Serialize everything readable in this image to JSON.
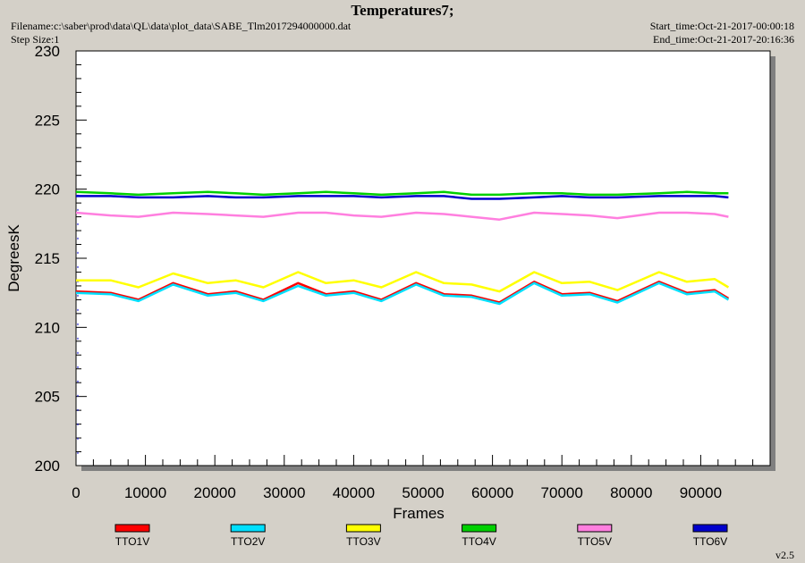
{
  "header": {
    "title": "Temperatures7;",
    "filename": "Filename:c:\\saber\\prod\\data\\QL\\data\\plot_data\\SABE_Tlm2017294000000.dat",
    "step_size": "Step Size:1",
    "start_time": "Start_time:Oct-21-2017-00:00:18",
    "end_time": "End_time:Oct-21-2017-20:16:36",
    "version": "v2.5"
  },
  "chart_data": {
    "type": "line",
    "title": "Temperatures7;",
    "xlabel": "Frames",
    "ylabel": "DegreesK",
    "xlim": [
      0,
      100000
    ],
    "ylim": [
      200,
      230
    ],
    "xticks": [
      0,
      10000,
      20000,
      30000,
      40000,
      50000,
      60000,
      70000,
      80000,
      90000
    ],
    "yticks": [
      200,
      205,
      210,
      215,
      220,
      225,
      230
    ],
    "grid": false,
    "legend_position": "bottom",
    "x": [
      0,
      5000,
      9000,
      14000,
      19000,
      23000,
      27000,
      32000,
      36000,
      40000,
      44000,
      49000,
      53000,
      57000,
      61000,
      66000,
      70000,
      74000,
      78000,
      84000,
      88000,
      92000,
      94000
    ],
    "series": [
      {
        "name": "TTO1V",
        "color": "#ff0000",
        "values": [
          212.6,
          212.5,
          212.0,
          213.2,
          212.4,
          212.6,
          212.0,
          213.2,
          212.4,
          212.6,
          212.0,
          213.2,
          212.4,
          212.3,
          211.8,
          213.3,
          212.4,
          212.5,
          211.9,
          213.3,
          212.5,
          212.7,
          212.1
        ]
      },
      {
        "name": "TTO2V",
        "color": "#00e0ff",
        "values": [
          212.5,
          212.4,
          211.9,
          213.1,
          212.3,
          212.5,
          211.9,
          213.0,
          212.3,
          212.5,
          211.9,
          213.1,
          212.3,
          212.2,
          211.7,
          213.2,
          212.3,
          212.4,
          211.8,
          213.2,
          212.4,
          212.6,
          212.0
        ]
      },
      {
        "name": "TTO3V",
        "color": "#ffff00",
        "values": [
          213.4,
          213.4,
          212.9,
          213.9,
          213.2,
          213.4,
          212.9,
          214.0,
          213.2,
          213.4,
          212.9,
          214.0,
          213.2,
          213.1,
          212.6,
          214.0,
          213.2,
          213.3,
          212.7,
          214.0,
          213.3,
          213.5,
          212.9
        ]
      },
      {
        "name": "TTO4V",
        "color": "#00d000",
        "values": [
          219.8,
          219.7,
          219.6,
          219.7,
          219.8,
          219.7,
          219.6,
          219.7,
          219.8,
          219.7,
          219.6,
          219.7,
          219.8,
          219.6,
          219.6,
          219.7,
          219.7,
          219.6,
          219.6,
          219.7,
          219.8,
          219.7,
          219.7
        ]
      },
      {
        "name": "TTO5V",
        "color": "#ff7fdf",
        "values": [
          218.3,
          218.1,
          218.0,
          218.3,
          218.2,
          218.1,
          218.0,
          218.3,
          218.3,
          218.1,
          218.0,
          218.3,
          218.2,
          218.0,
          217.8,
          218.3,
          218.2,
          218.1,
          217.9,
          218.3,
          218.3,
          218.2,
          218.0
        ]
      },
      {
        "name": "TTO6V",
        "color": "#0000cc",
        "values": [
          219.5,
          219.5,
          219.4,
          219.4,
          219.5,
          219.4,
          219.4,
          219.5,
          219.5,
          219.5,
          219.4,
          219.5,
          219.5,
          219.3,
          219.3,
          219.4,
          219.5,
          219.4,
          219.4,
          219.5,
          219.5,
          219.5,
          219.4
        ]
      }
    ]
  }
}
